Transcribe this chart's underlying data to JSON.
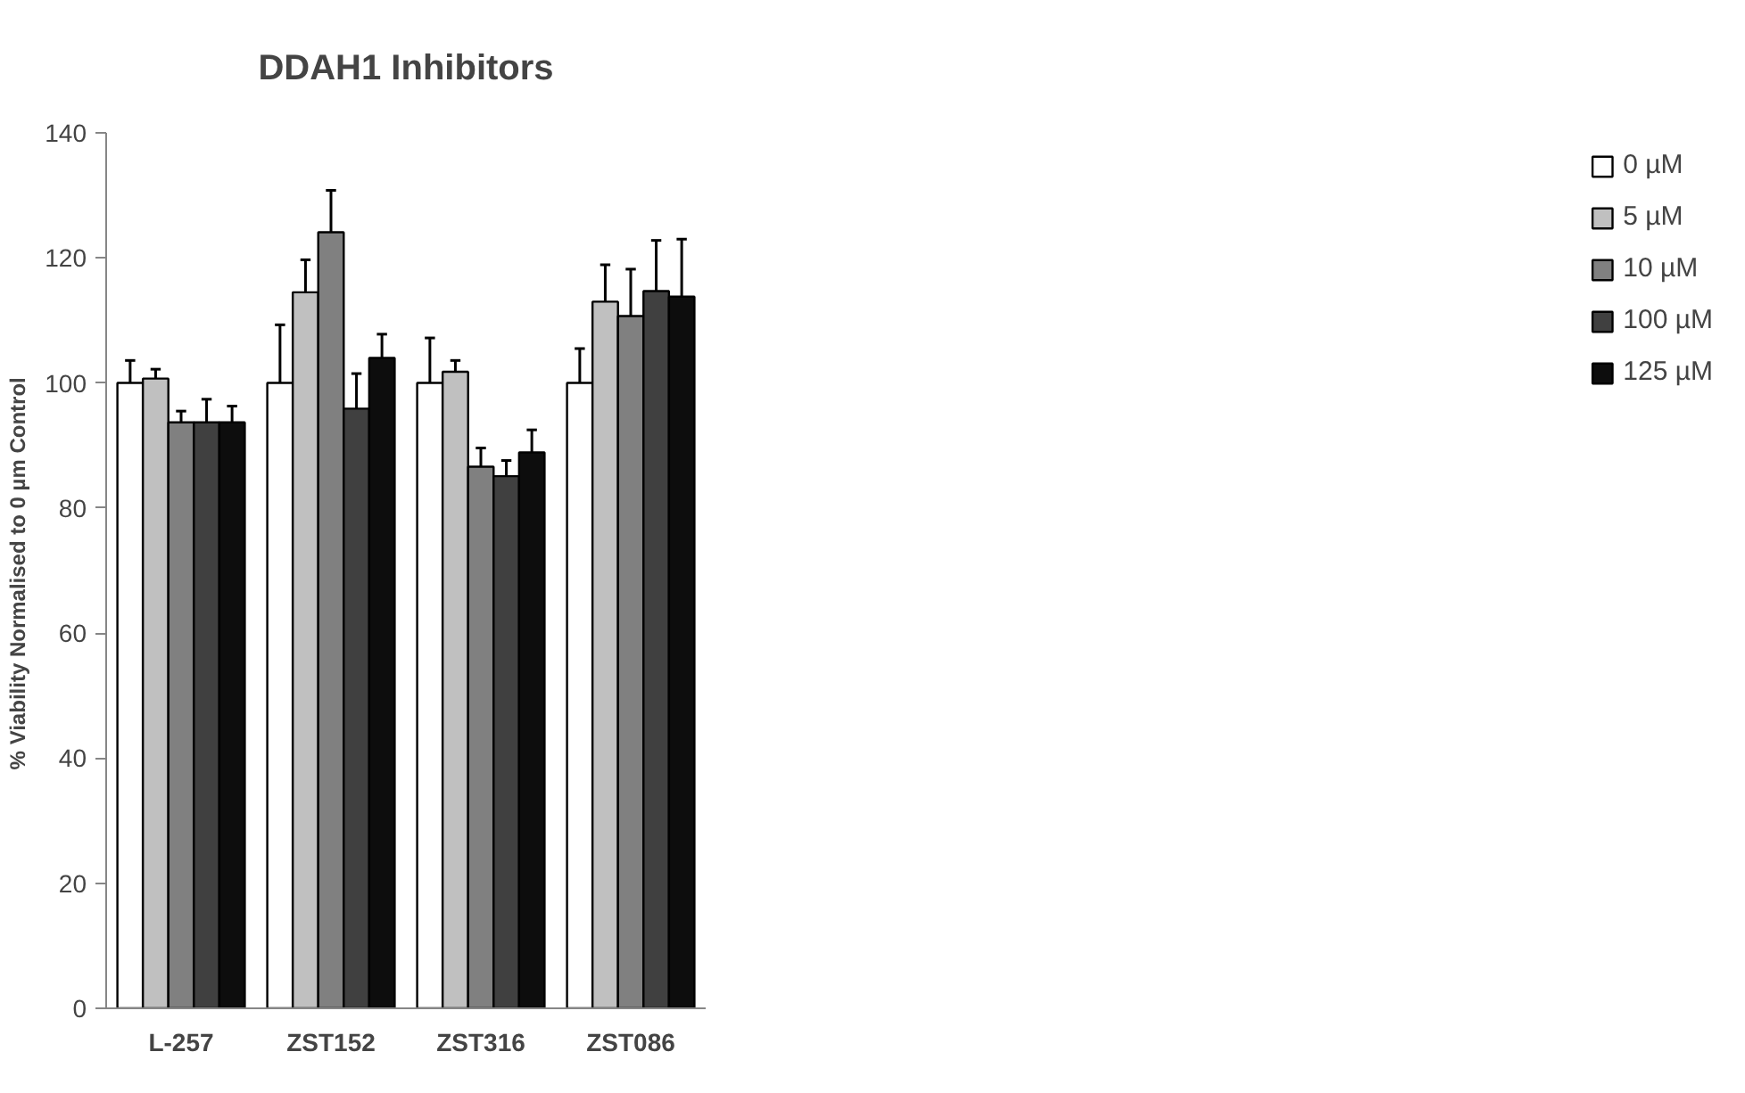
{
  "chart_data": {
    "type": "bar",
    "title": "DDAH1 Inhibitors",
    "ylabel": "% Viability  Normalised to 0 µm Control",
    "categories": [
      "L-257",
      "ZST152",
      "ZST316",
      "ZST086"
    ],
    "series": [
      {
        "name": "0 µM",
        "color": "#ffffff",
        "values": [
          100,
          100,
          100,
          100
        ],
        "errors": [
          [
            100,
            103.6
          ],
          [
            100,
            109.3
          ],
          [
            100,
            107.2
          ],
          [
            100,
            105.5
          ]
        ]
      },
      {
        "name": "5 µM",
        "color": "#c0c0c0",
        "values": [
          100.7,
          114.5,
          101.8,
          113
        ],
        "errors": [
          [
            100.7,
            102.2
          ],
          [
            114.5,
            119.7
          ],
          [
            101.8,
            103.6
          ],
          [
            113,
            118.9
          ]
        ]
      },
      {
        "name": "10 µM",
        "color": "#808080",
        "values": [
          93.7,
          124.1,
          86.6,
          110.7
        ],
        "errors": [
          [
            93.7,
            95.5
          ],
          [
            124.1,
            130.8
          ],
          [
            86.6,
            89.6
          ],
          [
            110.7,
            118.2
          ]
        ]
      },
      {
        "name": "100 µM",
        "color": "#404040",
        "values": [
          93.7,
          95.9,
          85.1,
          114.7
        ],
        "errors": [
          [
            93.7,
            97.4
          ],
          [
            95.9,
            101.5
          ],
          [
            85.1,
            87.6
          ],
          [
            114.7,
            122.8
          ]
        ]
      },
      {
        "name": "125 µM",
        "color": "#0d0d0d",
        "values": [
          93.7,
          104,
          88.9,
          113.8
        ],
        "errors": [
          [
            93.7,
            96.3
          ],
          [
            104,
            107.8
          ],
          [
            88.9,
            92.5
          ],
          [
            113.8,
            123
          ]
        ]
      }
    ],
    "ylim": [
      0,
      140
    ],
    "yticks": [
      0,
      20,
      40,
      60,
      80,
      100,
      120,
      140
    ],
    "grid": false,
    "legend": "right"
  }
}
